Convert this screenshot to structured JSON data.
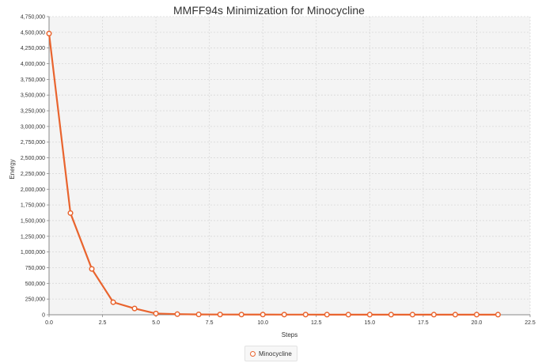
{
  "chart_data": {
    "type": "line",
    "title": "MMFF94s Minimization for Minocycline",
    "xlabel": "Steps",
    "ylabel": "Energy",
    "xlim": [
      0.0,
      22.5
    ],
    "ylim": [
      0,
      4750000
    ],
    "x_ticks": [
      "0.0",
      "2.5",
      "5.0",
      "7.5",
      "10.0",
      "12.5",
      "15.0",
      "17.5",
      "20.0",
      "22.5"
    ],
    "y_ticks": [
      "0",
      "250,000",
      "500,000",
      "750,000",
      "1,000,000",
      "1,250,000",
      "1,500,000",
      "1,750,000",
      "2,000,000",
      "2,250,000",
      "2,500,000",
      "2,750,000",
      "3,000,000",
      "3,250,000",
      "3,500,000",
      "3,750,000",
      "4,000,000",
      "4,250,000",
      "4,500,000",
      "4,750,000"
    ],
    "grid": true,
    "legend_position": "bottom",
    "series": [
      {
        "name": "Minocycline",
        "color": "#e9642e",
        "x": [
          0,
          1,
          2,
          3,
          4,
          5,
          6,
          7,
          8,
          9,
          10,
          11,
          12,
          13,
          14,
          15,
          16,
          17,
          18,
          19,
          20,
          21
        ],
        "y": [
          4480000,
          1620000,
          730000,
          200000,
          100000,
          20000,
          10000,
          5000,
          4000,
          3000,
          3000,
          2500,
          2500,
          2000,
          2000,
          2000,
          2000,
          2000,
          2000,
          2000,
          2000,
          2000
        ]
      }
    ]
  }
}
